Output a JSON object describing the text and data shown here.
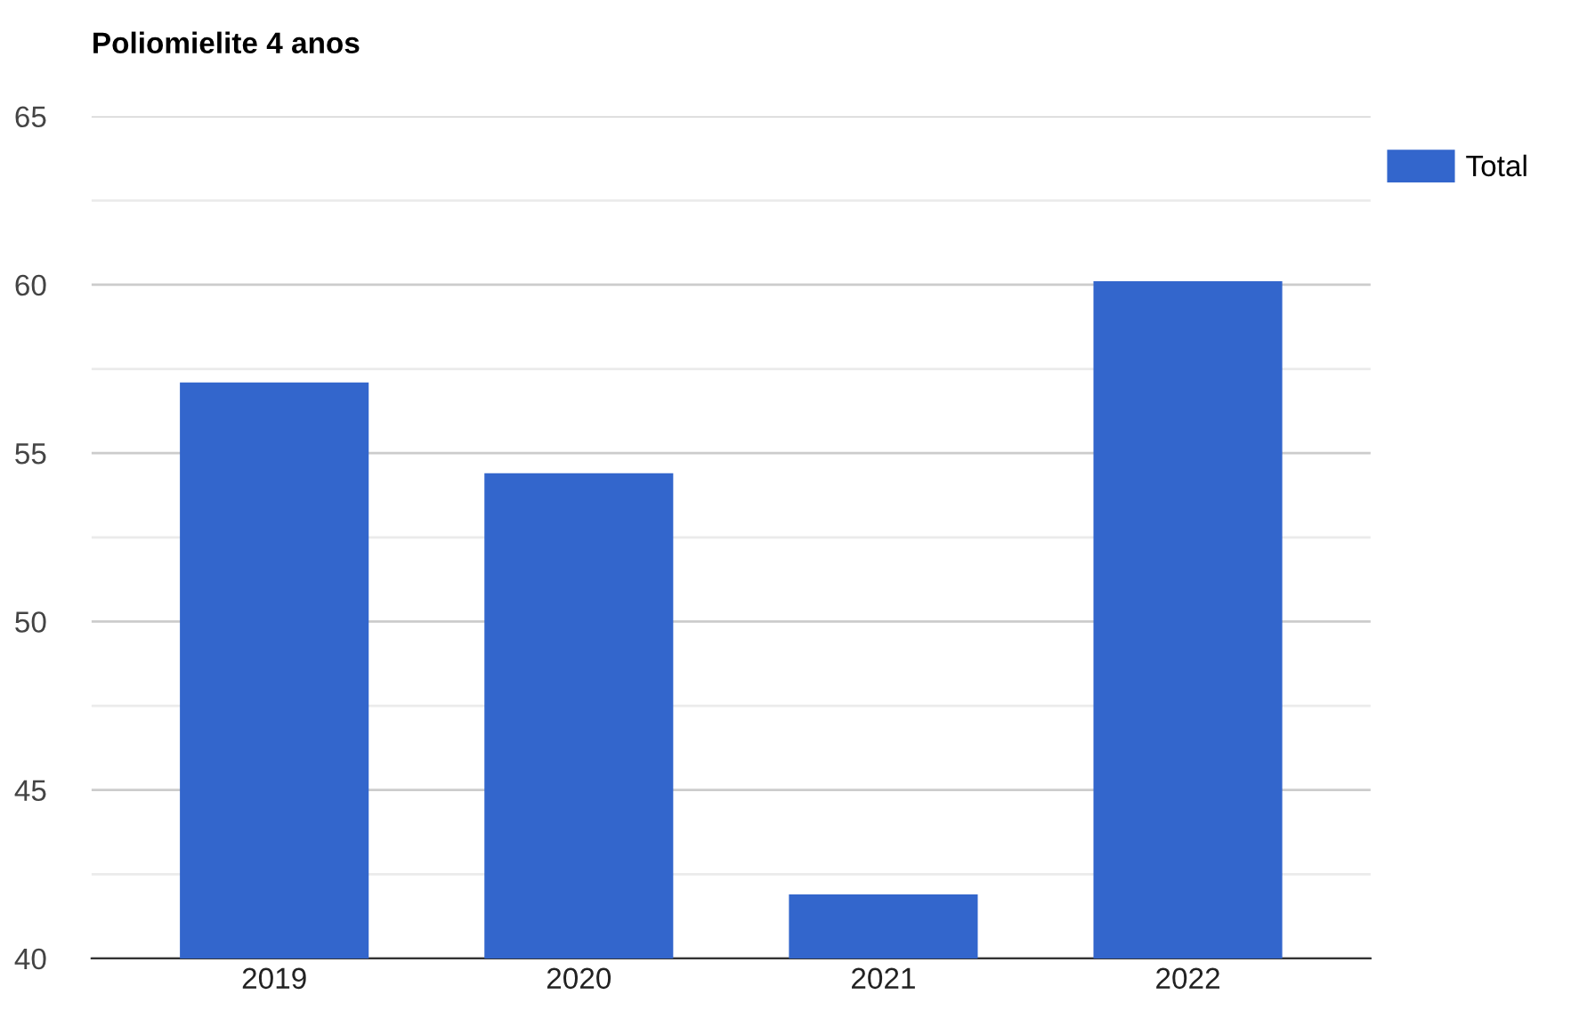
{
  "chart_data": {
    "type": "bar",
    "title": "Poliomielite 4 anos",
    "categories": [
      "2019",
      "2020",
      "2021",
      "2022"
    ],
    "series": [
      {
        "name": "Total",
        "color": "#3366cc",
        "values": [
          57.1,
          54.4,
          41.9,
          60.1
        ]
      }
    ],
    "ylim": [
      40,
      65
    ],
    "yticks": [
      40,
      {
        "value": 42.5,
        "label": null
      },
      45,
      {
        "value": 47.5,
        "label": null
      },
      50,
      {
        "value": 52.5,
        "label": null
      },
      55,
      {
        "value": 57.5,
        "label": null
      },
      60,
      {
        "value": 62.5,
        "label": null
      },
      65
    ],
    "grid": "y",
    "legend": "top right"
  }
}
